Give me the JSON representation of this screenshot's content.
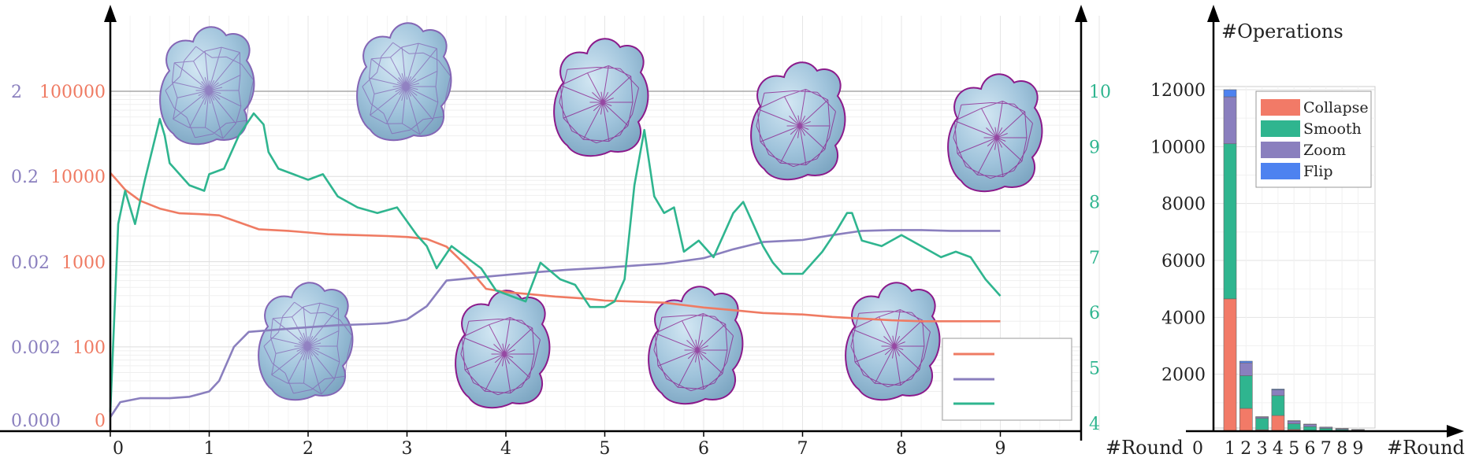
{
  "chart_data": [
    {
      "type": "line",
      "x_ticks": [
        "0",
        "1",
        "2",
        "3",
        "4",
        "5",
        "6",
        "7",
        "8",
        "9"
      ],
      "xlabel": "#Round",
      "xlim": [
        0,
        10
      ],
      "left_axes": [
        {
          "ticks": [
            "2",
            "0.2",
            "0.02",
            "0.002",
            "0.000"
          ],
          "color": "#8a7fbe"
        },
        {
          "ticks": [
            "100000",
            "10000",
            "1000",
            "100",
            "0"
          ],
          "color": "#ef7b63"
        }
      ],
      "right_axis": {
        "ticks": [
          "10",
          "9",
          "8",
          "7",
          "6",
          "5",
          "4"
        ],
        "color": "#2fb58f",
        "ylim": [
          4,
          10
        ]
      },
      "scale": "log (left axes), linear (right axis)",
      "grid": true,
      "legend_position": "bottom-right",
      "series": [
        {
          "axis": "left-red",
          "color": "#ef7b63",
          "x": [
            0,
            0.05,
            0.15,
            0.3,
            0.5,
            0.7,
            0.95,
            1.1,
            1.3,
            1.5,
            1.8,
            2.0,
            2.2,
            2.5,
            2.8,
            3.0,
            3.2,
            3.4,
            3.6,
            3.8,
            4.0,
            4.2,
            4.5,
            4.8,
            5.0,
            5.3,
            5.6,
            6.0,
            6.3,
            6.6,
            7.0,
            7.3,
            7.6,
            7.9,
            8.2,
            8.5,
            8.8,
            9.0
          ],
          "y": [
            11000,
            9500,
            7000,
            5200,
            4200,
            3700,
            3600,
            3500,
            2900,
            2400,
            2300,
            2200,
            2100,
            2050,
            2000,
            1950,
            1850,
            1500,
            900,
            480,
            440,
            420,
            390,
            370,
            350,
            340,
            330,
            290,
            270,
            250,
            240,
            225,
            215,
            205,
            200,
            200,
            200,
            200
          ]
        },
        {
          "axis": "left-purple",
          "color": "#8a7fbe",
          "x": [
            0,
            0.1,
            0.3,
            0.6,
            0.8,
            1.0,
            1.1,
            1.25,
            1.4,
            1.7,
            2.0,
            2.3,
            2.6,
            2.8,
            3.0,
            3.2,
            3.4,
            3.7,
            4.0,
            4.3,
            4.6,
            5.0,
            5.3,
            5.6,
            6.0,
            6.3,
            6.6,
            7.0,
            7.3,
            7.6,
            7.9,
            8.2,
            8.5,
            8.8,
            9.0
          ],
          "y": [
            0.0003,
            0.00045,
            0.0005,
            0.0005,
            0.00052,
            0.0006,
            0.0008,
            0.002,
            0.003,
            0.0032,
            0.0034,
            0.0036,
            0.0037,
            0.0038,
            0.0042,
            0.006,
            0.012,
            0.013,
            0.014,
            0.015,
            0.016,
            0.017,
            0.018,
            0.019,
            0.022,
            0.028,
            0.034,
            0.036,
            0.041,
            0.046,
            0.047,
            0.047,
            0.046,
            0.046,
            0.046
          ]
        },
        {
          "axis": "right-green",
          "color": "#2fb58f",
          "x": [
            0,
            0.08,
            0.15,
            0.25,
            0.35,
            0.5,
            0.55,
            0.6,
            0.65,
            0.8,
            0.95,
            1.0,
            1.15,
            1.3,
            1.45,
            1.55,
            1.6,
            1.7,
            1.85,
            2.0,
            2.15,
            2.3,
            2.5,
            2.7,
            2.9,
            3.1,
            3.2,
            3.3,
            3.45,
            3.6,
            3.75,
            3.9,
            4.05,
            4.2,
            4.35,
            4.55,
            4.7,
            4.85,
            5.0,
            5.1,
            5.2,
            5.3,
            5.4,
            5.45,
            5.5,
            5.6,
            5.7,
            5.8,
            5.95,
            6.1,
            6.2,
            6.3,
            6.4,
            6.5,
            6.6,
            6.7,
            6.8,
            7.0,
            7.2,
            7.35,
            7.45,
            7.5,
            7.6,
            7.8,
            8.0,
            8.2,
            8.4,
            8.55,
            8.7,
            8.85,
            9.0
          ],
          "y": [
            4.2,
            7.6,
            8.2,
            7.6,
            8.4,
            9.5,
            9.2,
            8.7,
            8.6,
            8.3,
            8.2,
            8.5,
            8.6,
            9.2,
            9.6,
            9.4,
            8.9,
            8.6,
            8.5,
            8.4,
            8.5,
            8.1,
            7.9,
            7.8,
            7.9,
            7.4,
            7.2,
            6.8,
            7.2,
            7.0,
            6.8,
            6.4,
            6.3,
            6.2,
            6.9,
            6.6,
            6.5,
            6.1,
            6.1,
            6.2,
            6.6,
            8.3,
            9.3,
            8.7,
            8.1,
            7.8,
            7.9,
            7.1,
            7.3,
            7.0,
            7.4,
            7.8,
            8.0,
            7.6,
            7.2,
            6.9,
            6.7,
            6.7,
            7.1,
            7.5,
            7.8,
            7.8,
            7.3,
            7.2,
            7.4,
            7.2,
            7.0,
            7.1,
            7.0,
            6.6,
            6.3
          ]
        }
      ]
    },
    {
      "type": "bar",
      "title": "#Operations",
      "xlabel": "#Round",
      "x_origin_label": "0",
      "categories": [
        "1",
        "2",
        "3",
        "4",
        "5",
        "6",
        "7",
        "8",
        "9"
      ],
      "ylim": [
        0,
        12000
      ],
      "y_ticks": [
        "12000",
        "10000",
        "8000",
        "6000",
        "4000",
        "2000"
      ],
      "stacked": true,
      "grid": true,
      "legend_position": "top-right",
      "series": [
        {
          "name": "Collapse",
          "color": "#f27a67",
          "values": [
            4650,
            800,
            50,
            550,
            60,
            30,
            20,
            10,
            5
          ]
        },
        {
          "name": "Smooth",
          "color": "#2fb58f",
          "values": [
            5450,
            1150,
            400,
            700,
            200,
            130,
            80,
            50,
            30
          ]
        },
        {
          "name": "Zoom",
          "color": "#8a7fbe",
          "values": [
            1650,
            450,
            50,
            200,
            100,
            80,
            40,
            30,
            20
          ]
        },
        {
          "name": "Flip",
          "color": "#4d82f0",
          "values": [
            250,
            60,
            10,
            30,
            10,
            10,
            5,
            5,
            5
          ]
        }
      ]
    }
  ]
}
